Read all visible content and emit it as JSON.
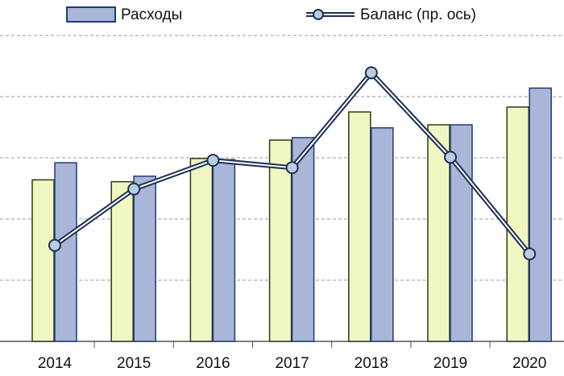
{
  "chart_data": {
    "type": "bar",
    "categories": [
      "2014",
      "2015",
      "2016",
      "2017",
      "2018",
      "2019",
      "2020"
    ],
    "ylim": [
      0,
      5.58
    ],
    "yticks": [
      0,
      1,
      2,
      3,
      4,
      5
    ],
    "grid": true,
    "y2lim": [
      0,
      5.58
    ],
    "series": [
      {
        "color": "#f1f7c3",
        "edge": "#2d3a12",
        "values": [
          2.64,
          2.61,
          2.99,
          3.29,
          3.75,
          3.54,
          3.83
        ]
      },
      {
        "name": "Расходы",
        "color": "#a9b6d7",
        "edge": "#1f3a78",
        "values": [
          2.92,
          2.7,
          2.97,
          3.33,
          3.49,
          3.54,
          4.14
        ]
      },
      {
        "name": "Баланс (пр. ось)",
        "type": "line",
        "axis": "y2",
        "color": "#1f2f55",
        "marker": "#b9cde0",
        "values": [
          1.57,
          2.49,
          2.96,
          2.84,
          4.39,
          3.01,
          1.43
        ]
      }
    ]
  }
}
